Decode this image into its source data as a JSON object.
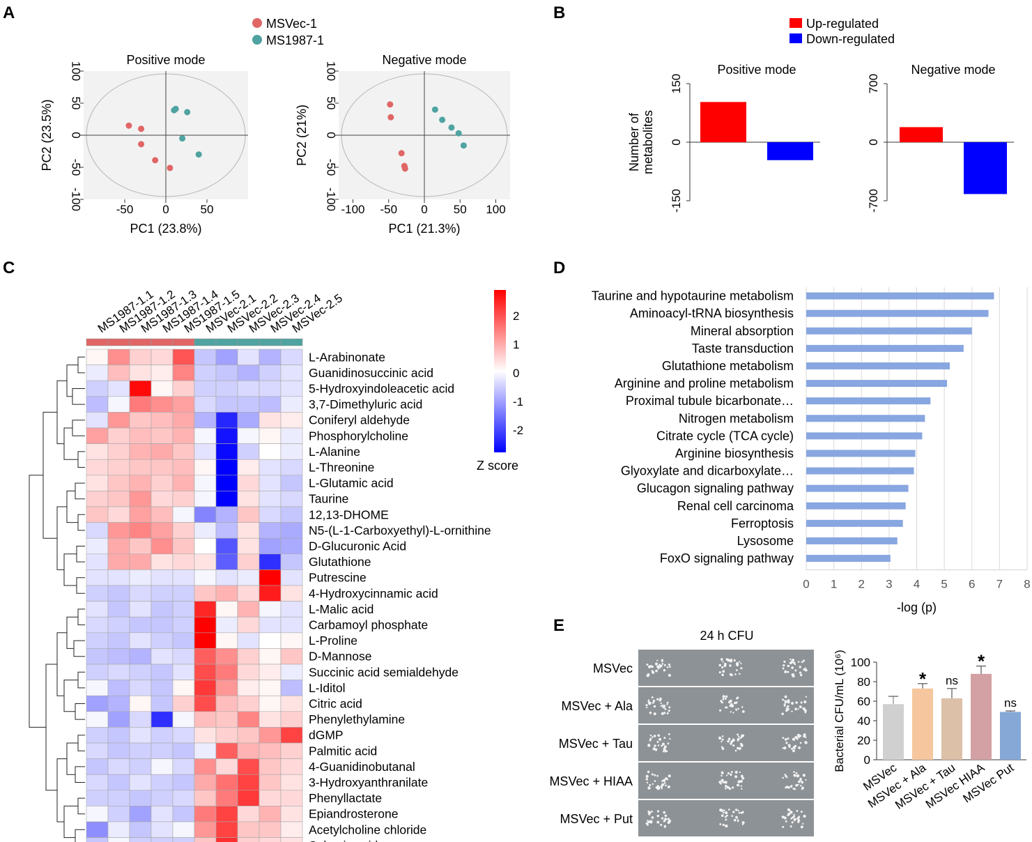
{
  "panels": {
    "A": "A",
    "B": "B",
    "C": "C",
    "D": "D",
    "E": "E"
  },
  "colors": {
    "msvec": "#e06666",
    "ms1987": "#4fa3a0",
    "up": "#ff0000",
    "down": "#0000ff",
    "pathway_bar": "#88a6e0",
    "cfu": [
      "#d0d0d0",
      "#f6c79e",
      "#dcc0a8",
      "#d3a0a4",
      "#86a8d6"
    ]
  },
  "chart_data": [
    {
      "id": "A1",
      "type": "scatter",
      "title": "Positive mode",
      "xlabel": "PC1 (23.8%)",
      "ylabel": "PC2 (23.5%)",
      "xlim": [
        -100,
        100
      ],
      "ylim": [
        -100,
        100
      ],
      "xticks": [
        -50,
        0,
        50
      ],
      "yticks": [
        100,
        50,
        0,
        -50,
        -100
      ],
      "legend": [
        "MSVec-1",
        "MS1987-1"
      ],
      "series": [
        {
          "name": "MSVec-1",
          "points": [
            [
              -45,
              15
            ],
            [
              -30,
              10
            ],
            [
              -30,
              -14
            ],
            [
              -13,
              -39
            ],
            [
              5,
              -51
            ]
          ]
        },
        {
          "name": "MS1987-1",
          "points": [
            [
              10,
              39
            ],
            [
              12,
              41
            ],
            [
              26,
              36
            ],
            [
              20,
              -5
            ],
            [
              40,
              -30
            ]
          ]
        }
      ]
    },
    {
      "id": "A2",
      "type": "scatter",
      "title": "Negative mode",
      "xlabel": "PC1 (21.3%)",
      "ylabel": "PC2 (21%)",
      "xlim": [
        -120,
        120
      ],
      "ylim": [
        -100,
        100
      ],
      "xticks": [
        -100,
        -50,
        0,
        50,
        100
      ],
      "yticks": [
        100,
        50,
        0,
        -50,
        -100
      ],
      "series": [
        {
          "name": "MSVec-1",
          "points": [
            [
              -48,
              48
            ],
            [
              -47,
              28
            ],
            [
              -32,
              -28
            ],
            [
              -28,
              -48
            ],
            [
              -27,
              -52
            ]
          ]
        },
        {
          "name": "MS1987-1",
          "points": [
            [
              15,
              40
            ],
            [
              25,
              24
            ],
            [
              38,
              12
            ],
            [
              48,
              3
            ],
            [
              55,
              -16
            ]
          ]
        }
      ]
    },
    {
      "id": "B1",
      "type": "bar",
      "title": "Positive mode",
      "ylabel": "Number of metabolites",
      "ylim": [
        -150,
        150
      ],
      "yticks": [
        150,
        0,
        -150
      ],
      "legend": [
        "Up-regulated",
        "Down-regulated"
      ],
      "categories": [
        "Up-regulated",
        "Down-regulated"
      ],
      "values": [
        103,
        -46
      ]
    },
    {
      "id": "B2",
      "type": "bar",
      "title": "Negative mode",
      "ylim": [
        -700,
        700
      ],
      "yticks": [
        700,
        0,
        -700
      ],
      "categories": [
        "Up-regulated",
        "Down-regulated"
      ],
      "values": [
        180,
        -620
      ]
    },
    {
      "id": "C",
      "type": "heatmap",
      "legend_title": "Z  score",
      "colorbar_ticks": [
        "2",
        "1",
        "0",
        "-1",
        "-2"
      ],
      "columns": [
        "MS1987-1.1",
        "MS1987-1.2",
        "MS1987-1.3",
        "MS1987-1.4",
        "MS1987-1.5",
        "MSVec-2.1",
        "MSVec-2.2",
        "MSVec-2.3",
        "MSVec-2.4",
        "MSVec-2.5"
      ],
      "rows": [
        "L-Arabinonate",
        "Guanidinosuccinic acid",
        "5-Hydroxyindoleacetic acid",
        "3,7-Dimethyluric acid",
        "Coniferyl aldehyde",
        "Phosphorylcholine",
        "L-Alanine",
        "L-Threonine",
        "L-Glutamic acid",
        "Taurine",
        "12,13-DHOME",
        "N5-(L-1-Carboxyethyl)-L-ornithine",
        "D-Glucuronic Acid",
        "Glutathione",
        "Putrescine",
        "4-Hydroxycinnamic acid",
        "L-Malic acid",
        "Carbamoyl phosphate",
        "L-Proline",
        "D-Mannose",
        "Succinic acid semialdehyde",
        "L-Iditol",
        "Citric acid",
        "Phenylethylamine",
        "dGMP",
        "Palmitic acid",
        "4-Guanidinobutanal",
        "3-Hydroxyanthranilate",
        "Phenyllactate",
        "Epiandrosterone",
        "Acetylcholine chloride",
        "Sebacic acid"
      ],
      "values": [
        [
          0.1,
          1.2,
          0.5,
          0.4,
          1.8,
          -0.6,
          -1.0,
          -0.3,
          -0.8,
          -0.4
        ],
        [
          -0.2,
          0.7,
          0.3,
          0.2,
          1.3,
          -0.5,
          -0.6,
          -0.8,
          -0.5,
          -0.3
        ],
        [
          -0.5,
          -0.3,
          2.6,
          0.1,
          0.5,
          -0.5,
          -0.5,
          -0.4,
          -0.4,
          -0.3
        ],
        [
          -0.7,
          -0.1,
          1.4,
          1.2,
          1.0,
          -0.4,
          -0.6,
          -0.6,
          -0.7,
          -0.2
        ],
        [
          -0.3,
          1.1,
          0.6,
          0.7,
          0.9,
          -0.8,
          -2.3,
          -0.9,
          0.3,
          0.2
        ],
        [
          1.0,
          0.5,
          0.7,
          0.6,
          0.8,
          -0.1,
          -2.5,
          -0.1,
          0.1,
          -0.2
        ],
        [
          0.3,
          0.5,
          0.8,
          0.9,
          0.6,
          -0.3,
          -2.6,
          -0.5,
          0.0,
          -0.2
        ],
        [
          0.4,
          0.5,
          0.6,
          0.6,
          0.7,
          0.1,
          -2.7,
          0.2,
          -0.3,
          -0.4
        ],
        [
          0.3,
          0.6,
          0.8,
          0.5,
          0.8,
          -0.1,
          -2.7,
          0.4,
          -0.3,
          -0.6
        ],
        [
          0.5,
          0.6,
          1.1,
          0.4,
          0.5,
          -0.1,
          -2.7,
          0.3,
          -0.3,
          -0.4
        ],
        [
          0.6,
          0.4,
          1.0,
          0.7,
          -0.1,
          -1.3,
          -0.8,
          0.6,
          -0.4,
          -0.6
        ],
        [
          -0.4,
          1.1,
          1.3,
          1.0,
          0.5,
          -0.2,
          -0.7,
          0.3,
          -0.8,
          -0.9
        ],
        [
          -0.2,
          0.9,
          0.6,
          1.2,
          0.6,
          0.0,
          -1.8,
          0.3,
          -1.0,
          -0.9
        ],
        [
          -0.3,
          0.9,
          0.9,
          0.3,
          0.4,
          0.3,
          -1.7,
          0.5,
          -2.2,
          -0.6
        ],
        [
          -0.3,
          -0.3,
          -0.2,
          -0.3,
          -0.3,
          -0.1,
          -0.3,
          -0.2,
          2.7,
          -0.3
        ],
        [
          -0.5,
          -0.6,
          -0.4,
          -0.5,
          -0.5,
          0.6,
          0.8,
          0.4,
          2.4,
          0.3
        ],
        [
          -0.3,
          -0.6,
          -0.3,
          -0.6,
          -0.5,
          2.3,
          0.1,
          0.8,
          -0.1,
          -0.3
        ],
        [
          -0.4,
          -0.5,
          -0.6,
          -0.6,
          -0.5,
          2.7,
          -0.2,
          0.4,
          -0.3,
          -0.3
        ],
        [
          -0.5,
          -0.6,
          -0.3,
          -0.5,
          -0.6,
          2.8,
          0.1,
          -0.3,
          0.0,
          0.1
        ],
        [
          -0.6,
          -0.7,
          -0.8,
          -0.3,
          -0.4,
          1.7,
          1.2,
          0.5,
          0.1,
          0.6
        ],
        [
          -0.5,
          -0.4,
          -0.5,
          -0.6,
          -0.3,
          1.9,
          1.4,
          0.4,
          0.2,
          -0.2
        ],
        [
          -0.1,
          -0.7,
          -0.4,
          -0.6,
          0.1,
          2.1,
          1.1,
          0.2,
          0.1,
          -0.7
        ],
        [
          -1.0,
          -0.8,
          0.1,
          -0.6,
          0.5,
          1.9,
          0.7,
          0.5,
          0.1,
          0.3
        ],
        [
          -0.1,
          -1.0,
          -0.4,
          -2.2,
          -0.1,
          0.7,
          0.6,
          1.3,
          0.3,
          0.5
        ],
        [
          -0.5,
          -0.6,
          -0.3,
          -0.5,
          -0.4,
          0.3,
          0.5,
          0.6,
          1.1,
          2.0
        ],
        [
          -0.4,
          -0.6,
          -0.5,
          -0.5,
          -0.6,
          -0.2,
          1.7,
          0.8,
          0.7,
          0.5
        ],
        [
          -0.6,
          -0.4,
          -0.5,
          -0.1,
          -0.4,
          1.2,
          0.4,
          1.9,
          0.6,
          0.4
        ],
        [
          -0.4,
          -0.6,
          -0.3,
          -0.5,
          -0.6,
          0.9,
          1.5,
          2.0,
          0.6,
          0.3
        ],
        [
          -0.5,
          -0.5,
          -0.6,
          -0.5,
          -0.4,
          0.6,
          1.4,
          2.1,
          0.4,
          0.4
        ],
        [
          -0.1,
          -0.5,
          -1.0,
          -0.3,
          -0.6,
          1.4,
          2.0,
          0.4,
          0.8,
          0.3
        ],
        [
          -1.2,
          -0.2,
          -0.6,
          -0.3,
          -0.1,
          1.1,
          2.0,
          0.6,
          0.6,
          0.2
        ],
        [
          -0.6,
          -0.1,
          -0.5,
          -0.5,
          -0.5,
          0.6,
          2.2,
          0.5,
          0.4,
          0.3
        ]
      ]
    },
    {
      "id": "D",
      "type": "bar",
      "orientation": "horizontal",
      "xlabel": "-log (p)",
      "xlim": [
        0,
        8
      ],
      "xticks": [
        0,
        1,
        2,
        3,
        4,
        5,
        6,
        7,
        8
      ],
      "categories": [
        "Taurine and hypotaurine metabolism",
        "Aminoacyl-tRNA biosynthesis",
        "Mineral absorption",
        "Taste transduction",
        "Glutathione metabolism",
        "Arginine and proline metabolism",
        "Proximal tubule bicarbonate…",
        "Nitrogen metabolism",
        "Citrate cycle (TCA cycle)",
        "Arginine biosynthesis",
        "Glyoxylate and dicarboxylate…",
        "Glucagon signaling pathway",
        "Renal cell carcinoma",
        "Ferroptosis",
        "Lysosome",
        "FoxO signaling pathway"
      ],
      "values": [
        6.8,
        6.6,
        6.0,
        5.7,
        5.2,
        5.1,
        4.5,
        4.3,
        4.2,
        3.95,
        3.9,
        3.7,
        3.6,
        3.5,
        3.3,
        3.05
      ]
    },
    {
      "id": "E",
      "type": "bar",
      "ylabel": "Bacterial CFU/mL (10⁶)",
      "ylim": [
        0,
        100
      ],
      "yticks": [
        100,
        80,
        60,
        40,
        20,
        0
      ],
      "categories": [
        "MSVec",
        "MSVec + Ala",
        "MSVec + Tau",
        "MSVec HIAA",
        "MSVec Put"
      ],
      "values": [
        57,
        73,
        63,
        88,
        49
      ],
      "errors": [
        8,
        5,
        10,
        8,
        1
      ],
      "annotations": [
        "",
        "*",
        "ns",
        "*",
        "ns"
      ]
    }
  ],
  "plate": {
    "title": "24 h CFU",
    "rows": [
      "MSVec",
      "MSVec + Ala",
      "MSVec + Tau",
      "MSVec + HIAA",
      "MSVec + Put"
    ]
  }
}
